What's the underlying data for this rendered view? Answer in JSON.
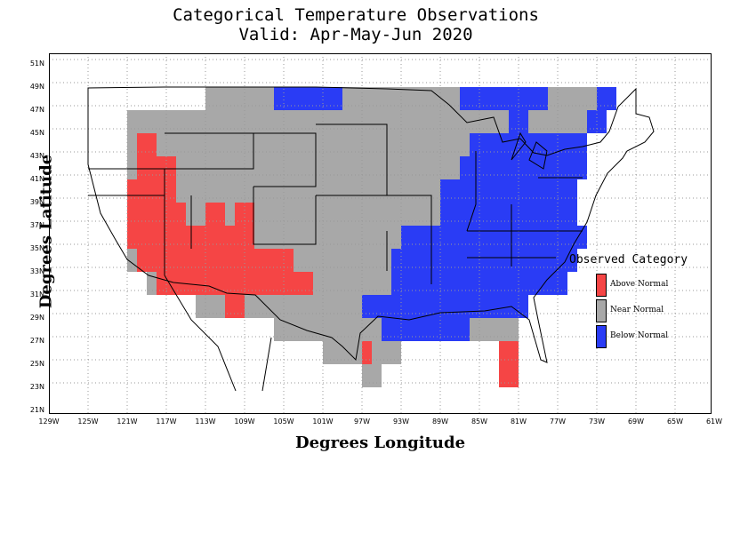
{
  "title": {
    "line1": "Categorical Temperature Observations",
    "line2": "Valid: Apr-May-Jun 2020"
  },
  "axes": {
    "xlabel": "Degrees Longitude",
    "ylabel": "Degrees Latitude",
    "x_ticks": [
      "129W",
      "125W",
      "121W",
      "117W",
      "113W",
      "109W",
      "105W",
      "101W",
      "97W",
      "93W",
      "89W",
      "85W",
      "81W",
      "77W",
      "73W",
      "69W",
      "65W",
      "61W"
    ],
    "y_ticks": [
      "51N",
      "49N",
      "47N",
      "45N",
      "43N",
      "41N",
      "39N",
      "37N",
      "35N",
      "33N",
      "31N",
      "29N",
      "27N",
      "25N",
      "23N",
      "21N"
    ]
  },
  "legend": {
    "title": "Observed Category",
    "items": [
      {
        "label": "Above Normal",
        "color": "#f54545"
      },
      {
        "label": "Near Normal",
        "color": "#a8a8a8"
      },
      {
        "label": "Below Normal",
        "color": "#2a3cf5"
      }
    ]
  },
  "colors": {
    "A": "#f54545",
    "N": "#a8a8a8",
    "B": "#2a3cf5"
  },
  "grid_origin": {
    "lon_west": 129,
    "lat_north": 51,
    "cell_deg": 2
  },
  "cells": [
    {
      "row": "49N",
      "cols": "............NNNNNNNBBBBBBBNNNNNNNNNNNNBBBBBBBBBNNNNNBB"
    },
    {
      "row": "47N",
      "cols": "....NNNNNNNNNNNNNNNNNNNNNNNNNNNNNNNNNNNNNNNBBNNNNNNBB"
    },
    {
      "row": "45N",
      "cols": "....NAANNNNNNNNNNNNNNNNNNNNNNNNNNNNNNNNBBBBBBBBBBBB"
    },
    {
      "row": "43N",
      "cols": "....NAAAANNNNNNNNNNNNNNNNNNNNNNNNNNNNNBBBBBBBBBBBBB"
    },
    {
      "row": "41N",
      "cols": "....AAAAANNNNNNNNNNNNNNNNNNNNNNNNNNNBBBBBBBBBBBBBB"
    },
    {
      "row": "39N",
      "cols": "....AAAAAANNAANAANNNNNNNNNNNNNNNNNNNBBBBBBBBBBBBBB"
    },
    {
      "row": "37N",
      "cols": "....AAAAAAAAAAAAANNNNNNNNNNNNNNNBBBBBBBBBBBBBBBBBBB"
    },
    {
      "row": "35N",
      "cols": "....NAAAAAAAAAAAAAAAANNNNNNNNNNBBBBBBBBBBBBBBBBBBB"
    },
    {
      "row": "33N",
      "cols": "......NAAAAAAAAAAAAAAAANNNNNNNNBBBBBBBBBBBBBBBBBB"
    },
    {
      "row": "31N",
      "cols": "...........NNNAANNNNNNNNNNNNBBBBBBBBBBBBBBBBB"
    },
    {
      "row": "29N",
      "cols": "...................NNNNNNNNNNNBBBBBBBBBNNNNN"
    },
    {
      "row": "27N",
      "cols": "........................NNNNANNN..........AA"
    },
    {
      "row": "25N",
      "cols": "............................NN............AA"
    }
  ]
}
